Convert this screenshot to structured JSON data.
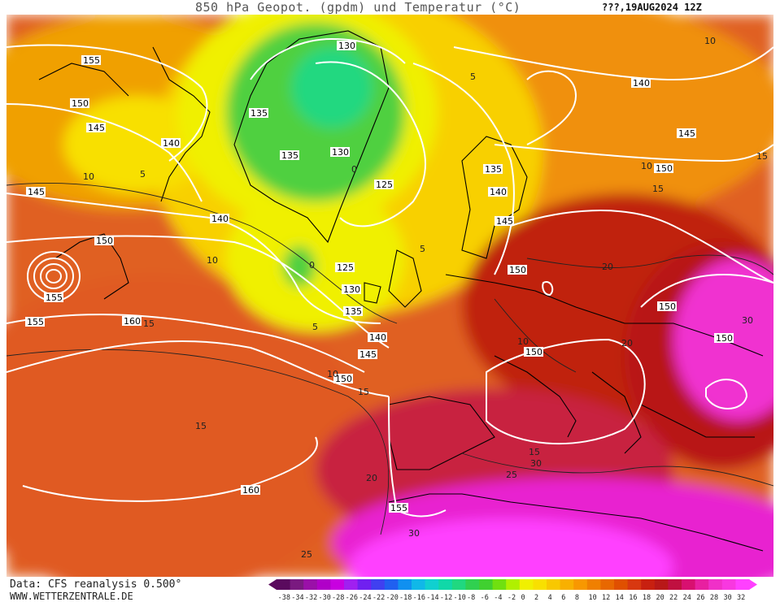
{
  "header": {
    "title": "850 hPa Geopot. (gpdm) und Temperatur (°C)",
    "valid_time": "???,19AUG2024 12Z"
  },
  "footer": {
    "source": "Data: CFS reanalysis 0.500°",
    "website": "WWW.WETTERZENTRALE.DE"
  },
  "colorbar": {
    "ticks": [
      "-38",
      "-34",
      "-32",
      "-30",
      "-28",
      "-26",
      "-24",
      "-22",
      "-20",
      "-18",
      "-16",
      "-14",
      "-12",
      "-10",
      "-8",
      "-6",
      "-4",
      "-2",
      "0",
      "2",
      "4",
      "6",
      "8",
      "10",
      "12",
      "14",
      "16",
      "18",
      "20",
      "22",
      "24",
      "26",
      "28",
      "30",
      "32"
    ],
    "colors": [
      "#5a0a5e",
      "#7a1a80",
      "#9a10a8",
      "#b000c8",
      "#c800e0",
      "#a020f0",
      "#7020f0",
      "#4040f0",
      "#2060f0",
      "#1090f0",
      "#10b8e8",
      "#10d0d0",
      "#10d8a8",
      "#20d880",
      "#30d050",
      "#40d030",
      "#70e010",
      "#b0f000",
      "#f0f000",
      "#f8e000",
      "#f8c800",
      "#f8b000",
      "#f89800",
      "#f08000",
      "#e86800",
      "#e05000",
      "#d83810",
      "#c82010",
      "#b81818",
      "#c01040",
      "#d81070",
      "#e820a0",
      "#f030c8",
      "#f838e0",
      "#ff40ff"
    ]
  },
  "map_labels": {
    "geopotential": [
      "155",
      "150",
      "145",
      "140",
      "135",
      "130",
      "125",
      "160"
    ],
    "temperature": [
      "0",
      "5",
      "10",
      "15",
      "20",
      "25",
      "30"
    ]
  }
}
